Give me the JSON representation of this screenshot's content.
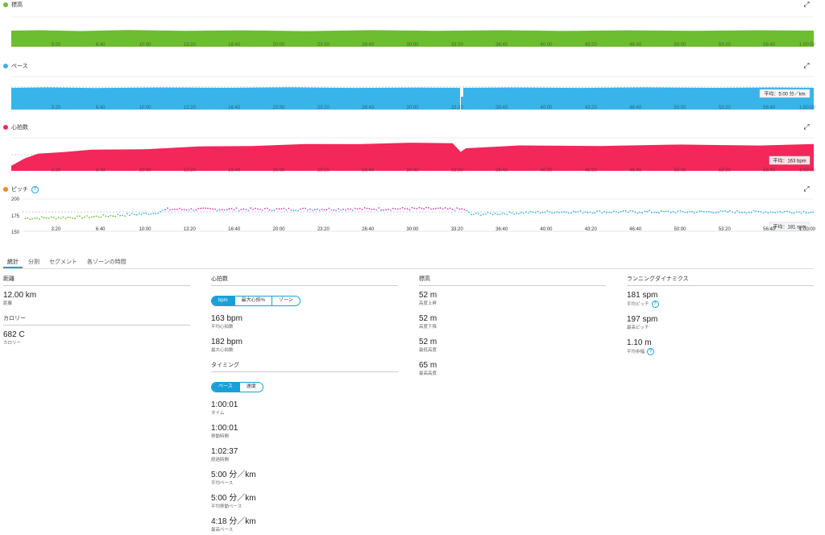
{
  "charts": {
    "elevation": {
      "title": "標高",
      "color": "#6cbd2f"
    },
    "pace": {
      "title": "ペース",
      "color": "#38b4ea",
      "avg_label": "平均：5:00 分／km"
    },
    "heart_rate": {
      "title": "心拍数",
      "color": "#f3275a",
      "avg_label": "平均：163 bpm"
    },
    "cadence": {
      "title": "ピッチ",
      "color": "#f08a24",
      "avg_label": "平均：181 spm",
      "y_ticks": [
        "200",
        "175",
        "150"
      ]
    },
    "x_ticks": [
      "3:20",
      "6:40",
      "10:00",
      "13:20",
      "16:40",
      "20:00",
      "23:20",
      "26:40",
      "30:00",
      "33:20",
      "36:40",
      "40:00",
      "43:20",
      "46:40",
      "50:00",
      "53:20",
      "56:40",
      "1:00:00"
    ]
  },
  "chart_data": [
    {
      "type": "area",
      "title": "標高",
      "x_unit": "min",
      "x_range": [
        0,
        60
      ],
      "series": [
        {
          "name": "標高",
          "values": [
            52,
            52,
            52,
            52,
            52,
            52,
            52,
            52,
            52,
            52
          ]
        }
      ]
    },
    {
      "type": "area",
      "title": "ペース",
      "avg": "5:00",
      "series": [
        {
          "name": "ペース",
          "values": [
            5.0,
            5.0,
            5.0,
            4.95,
            5.0,
            5.0,
            5.0,
            5.0,
            5.0,
            5.0
          ]
        }
      ]
    },
    {
      "type": "area",
      "title": "心拍数",
      "avg": 163,
      "series": [
        {
          "name": "心拍数",
          "x": [
            0,
            1,
            2,
            4,
            6,
            10,
            14,
            18,
            22,
            26,
            30,
            33,
            33.6,
            34,
            38,
            44,
            50,
            56,
            60
          ],
          "values": [
            120,
            138,
            146,
            152,
            155,
            158,
            162,
            165,
            167,
            169,
            170,
            171,
            150,
            160,
            164,
            165,
            166,
            166,
            167
          ]
        }
      ]
    },
    {
      "type": "scatter",
      "title": "ピッチ",
      "avg": 181,
      "ylim": [
        150,
        200
      ],
      "series": [
        {
          "name": "ピッチ",
          "x": [
            0,
            5,
            10,
            11,
            20,
            30,
            33.5,
            34,
            40,
            50,
            60
          ],
          "values": [
            170,
            172,
            178,
            184,
            184,
            185,
            184,
            176,
            180,
            180,
            180
          ]
        }
      ]
    }
  ],
  "tabs": [
    "統計",
    "分割",
    "セグメント",
    "各ゾーンの時間"
  ],
  "stats": {
    "distance": {
      "title": "距離",
      "value": "12.00 km",
      "label": "距離"
    },
    "calories": {
      "title": "カロリー",
      "value": "682 C",
      "label": "カロリー"
    },
    "heart_rate": {
      "title": "心拍数",
      "toggle": [
        "bpm",
        "最大心拍%",
        "ゾーン"
      ],
      "items": [
        {
          "value": "163 bpm",
          "label": "平均心拍数"
        },
        {
          "value": "182 bpm",
          "label": "最大心拍数"
        }
      ]
    },
    "timing": {
      "title": "タイミング",
      "toggle": [
        "ペース",
        "速度"
      ],
      "items": [
        {
          "value": "1:00:01",
          "label": "タイム"
        },
        {
          "value": "1:00:01",
          "label": "移動時間"
        },
        {
          "value": "1:02:37",
          "label": "経過時間"
        },
        {
          "value": "5:00 分／km",
          "label": "平均ペース"
        },
        {
          "value": "5:00 分／km",
          "label": "平均移動ペース"
        },
        {
          "value": "4:18 分／km",
          "label": "最高ペース"
        }
      ]
    },
    "elevation": {
      "title": "標高",
      "items": [
        {
          "value": "52 m",
          "label": "高度上昇"
        },
        {
          "value": "52 m",
          "label": "高度下降"
        },
        {
          "value": "52 m",
          "label": "最低高度"
        },
        {
          "value": "65 m",
          "label": "最高高度"
        }
      ]
    },
    "running_dynamics": {
      "title": "ランニングダイナミクス",
      "items": [
        {
          "value": "181 spm",
          "label": "平均ピッチ"
        },
        {
          "value": "197 spm",
          "label": "最高ピッチ"
        },
        {
          "value": "1.10 m",
          "label": "平均歩幅"
        }
      ]
    }
  }
}
